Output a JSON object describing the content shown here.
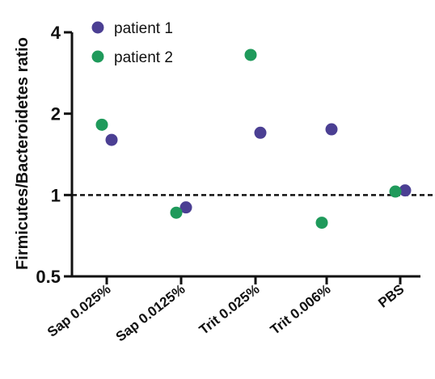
{
  "chart_data": {
    "type": "scatter",
    "title": "",
    "xlabel": "",
    "ylabel": "Firmicutes/Bacteroidetes ratio",
    "y_scale": "log2",
    "ylim": [
      0.5,
      4
    ],
    "y_ticks": [
      {
        "value": 0.5,
        "label": "0.5"
      },
      {
        "value": 1,
        "label": "1"
      },
      {
        "value": 2,
        "label": "2"
      },
      {
        "value": 4,
        "label": "4"
      }
    ],
    "categories": [
      "Sap 0.025%",
      "Sap 0.0125%",
      "Trit 0.025%",
      "Trit 0.006%",
      "PBS"
    ],
    "reference_line": {
      "y": 1,
      "style": "dashed"
    },
    "grid": false,
    "legend": "top-left",
    "series": [
      {
        "name": "patient 1",
        "color": "#4b3f93",
        "values": [
          1.6,
          0.9,
          1.7,
          1.75,
          1.04
        ]
      },
      {
        "name": "patient 2",
        "color": "#1f9a5b",
        "values": [
          1.82,
          0.86,
          3.3,
          0.79,
          1.03
        ]
      }
    ]
  }
}
